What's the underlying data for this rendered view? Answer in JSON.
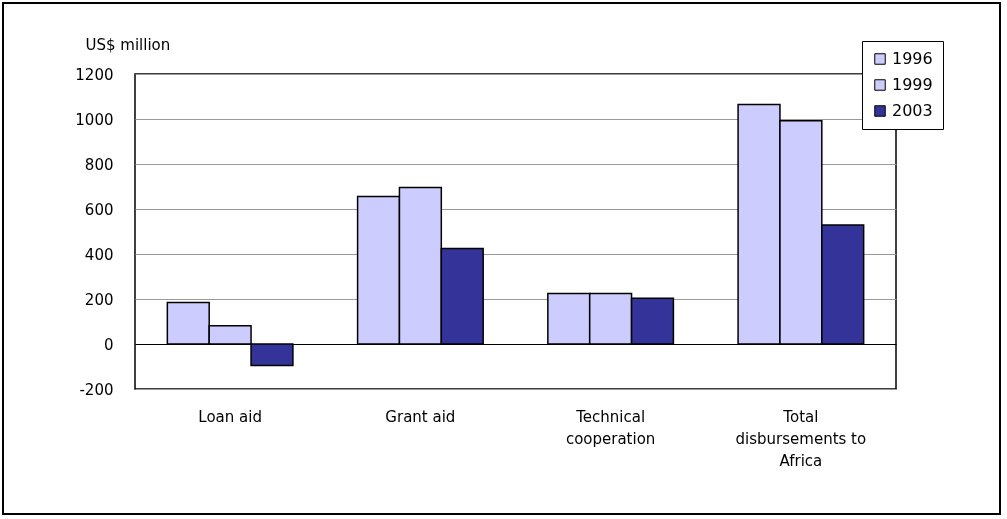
{
  "chart_data": {
    "type": "bar",
    "ylabel": "US$ million",
    "categories": [
      "Loan aid",
      "Grant aid",
      "Technical cooperation",
      "Total disbursements to Africa"
    ],
    "series": [
      {
        "name": "1996",
        "color": "#ccccff",
        "values": [
          185,
          656,
          225,
          1064
        ]
      },
      {
        "name": "1999",
        "color": "#ccccff",
        "values": [
          81,
          696,
          225,
          992
        ]
      },
      {
        "name": "2003",
        "color": "#333399",
        "values": [
          -96,
          425,
          203,
          529
        ]
      }
    ],
    "ylim": [
      -200,
      1200
    ],
    "yticks": [
      -200,
      0,
      200,
      400,
      600,
      800,
      1000,
      1200
    ],
    "grid": "y",
    "legend": "top right"
  }
}
